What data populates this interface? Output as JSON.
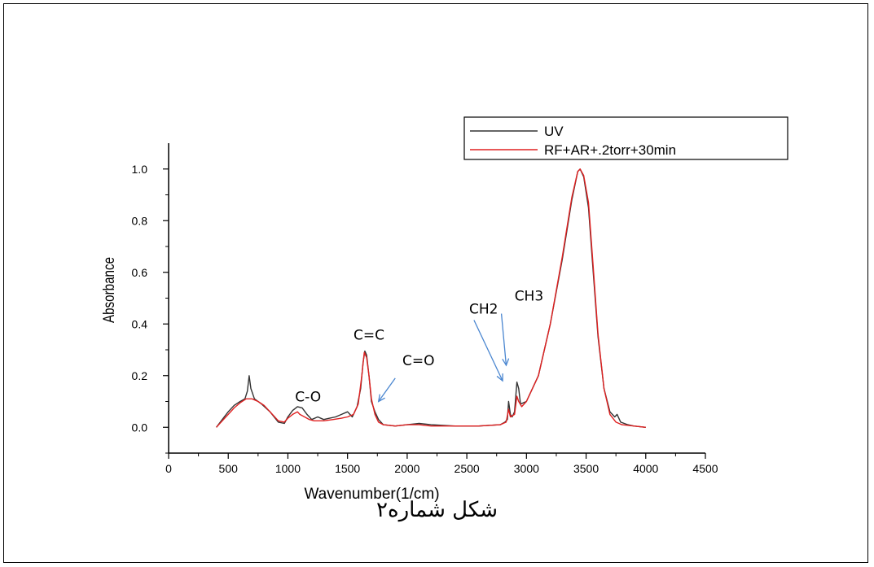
{
  "caption": "شکل شماره۲",
  "chart_data": {
    "type": "line",
    "xlabel": "Wavenumber(1/cm)",
    "ylabel": "Absorbance",
    "xlim": [
      0,
      4500
    ],
    "ylim": [
      -0.1,
      1.1
    ],
    "x_ticks": [
      "0",
      "500",
      "1000",
      "1500",
      "2000",
      "2500",
      "3000",
      "3500",
      "4000",
      "4500"
    ],
    "y_ticks": [
      "0.0",
      "0.2",
      "0.4",
      "0.6",
      "0.8",
      "1.0"
    ],
    "legend_position": "top-right",
    "series": [
      {
        "name": "UV",
        "color": "#333333",
        "points": [
          [
            400,
            0.0
          ],
          [
            450,
            0.03
          ],
          [
            500,
            0.06
          ],
          [
            550,
            0.085
          ],
          [
            600,
            0.1
          ],
          [
            640,
            0.11
          ],
          [
            660,
            0.14
          ],
          [
            675,
            0.2
          ],
          [
            690,
            0.15
          ],
          [
            720,
            0.11
          ],
          [
            780,
            0.09
          ],
          [
            850,
            0.06
          ],
          [
            920,
            0.02
          ],
          [
            970,
            0.015
          ],
          [
            1000,
            0.04
          ],
          [
            1040,
            0.065
          ],
          [
            1080,
            0.08
          ],
          [
            1120,
            0.075
          ],
          [
            1160,
            0.05
          ],
          [
            1200,
            0.03
          ],
          [
            1250,
            0.04
          ],
          [
            1300,
            0.03
          ],
          [
            1350,
            0.035
          ],
          [
            1400,
            0.04
          ],
          [
            1450,
            0.05
          ],
          [
            1500,
            0.06
          ],
          [
            1540,
            0.04
          ],
          [
            1580,
            0.08
          ],
          [
            1610,
            0.15
          ],
          [
            1630,
            0.25
          ],
          [
            1645,
            0.295
          ],
          [
            1660,
            0.28
          ],
          [
            1680,
            0.2
          ],
          [
            1700,
            0.1
          ],
          [
            1730,
            0.06
          ],
          [
            1760,
            0.03
          ],
          [
            1800,
            0.01
          ],
          [
            1900,
            0.005
          ],
          [
            2000,
            0.01
          ],
          [
            2100,
            0.015
          ],
          [
            2200,
            0.01
          ],
          [
            2400,
            0.005
          ],
          [
            2600,
            0.005
          ],
          [
            2780,
            0.01
          ],
          [
            2820,
            0.02
          ],
          [
            2840,
            0.03
          ],
          [
            2850,
            0.1
          ],
          [
            2865,
            0.05
          ],
          [
            2880,
            0.04
          ],
          [
            2900,
            0.06
          ],
          [
            2920,
            0.175
          ],
          [
            2935,
            0.15
          ],
          [
            2950,
            0.09
          ],
          [
            3000,
            0.1
          ],
          [
            3100,
            0.2
          ],
          [
            3200,
            0.4
          ],
          [
            3300,
            0.65
          ],
          [
            3380,
            0.88
          ],
          [
            3430,
            0.99
          ],
          [
            3450,
            1.0
          ],
          [
            3480,
            0.97
          ],
          [
            3520,
            0.85
          ],
          [
            3560,
            0.6
          ],
          [
            3600,
            0.35
          ],
          [
            3650,
            0.15
          ],
          [
            3700,
            0.06
          ],
          [
            3740,
            0.04
          ],
          [
            3760,
            0.05
          ],
          [
            3790,
            0.02
          ],
          [
            3850,
            0.01
          ],
          [
            3900,
            0.005
          ],
          [
            4000,
            0.0
          ]
        ]
      },
      {
        "name": "RF+AR+.2torr+30min",
        "color": "#e02020",
        "points": [
          [
            400,
            0.0
          ],
          [
            450,
            0.025
          ],
          [
            500,
            0.05
          ],
          [
            550,
            0.075
          ],
          [
            600,
            0.095
          ],
          [
            650,
            0.11
          ],
          [
            700,
            0.11
          ],
          [
            750,
            0.1
          ],
          [
            800,
            0.085
          ],
          [
            850,
            0.06
          ],
          [
            920,
            0.025
          ],
          [
            970,
            0.02
          ],
          [
            1000,
            0.035
          ],
          [
            1040,
            0.05
          ],
          [
            1080,
            0.06
          ],
          [
            1100,
            0.05
          ],
          [
            1140,
            0.04
          ],
          [
            1180,
            0.03
          ],
          [
            1220,
            0.025
          ],
          [
            1300,
            0.025
          ],
          [
            1380,
            0.03
          ],
          [
            1450,
            0.035
          ],
          [
            1500,
            0.04
          ],
          [
            1550,
            0.05
          ],
          [
            1590,
            0.09
          ],
          [
            1620,
            0.2
          ],
          [
            1640,
            0.29
          ],
          [
            1660,
            0.27
          ],
          [
            1680,
            0.2
          ],
          [
            1700,
            0.11
          ],
          [
            1730,
            0.05
          ],
          [
            1760,
            0.02
          ],
          [
            1800,
            0.01
          ],
          [
            1900,
            0.005
          ],
          [
            2000,
            0.01
          ],
          [
            2100,
            0.01
          ],
          [
            2200,
            0.005
          ],
          [
            2400,
            0.005
          ],
          [
            2600,
            0.005
          ],
          [
            2780,
            0.01
          ],
          [
            2830,
            0.02
          ],
          [
            2850,
            0.07
          ],
          [
            2865,
            0.04
          ],
          [
            2900,
            0.05
          ],
          [
            2920,
            0.12
          ],
          [
            2935,
            0.1
          ],
          [
            2960,
            0.08
          ],
          [
            3000,
            0.1
          ],
          [
            3100,
            0.2
          ],
          [
            3200,
            0.4
          ],
          [
            3300,
            0.66
          ],
          [
            3380,
            0.89
          ],
          [
            3430,
            0.99
          ],
          [
            3450,
            1.0
          ],
          [
            3480,
            0.975
          ],
          [
            3520,
            0.87
          ],
          [
            3560,
            0.62
          ],
          [
            3600,
            0.36
          ],
          [
            3650,
            0.15
          ],
          [
            3700,
            0.05
          ],
          [
            3750,
            0.02
          ],
          [
            3800,
            0.01
          ],
          [
            3900,
            0.005
          ],
          [
            4000,
            0.0
          ]
        ]
      }
    ],
    "annotations": [
      {
        "text": "C-O",
        "x": 1060,
        "y": 0.1
      },
      {
        "text": "C=C",
        "x": 1550,
        "y": 0.34
      },
      {
        "text": "C=O",
        "x": 1960,
        "y": 0.24
      },
      {
        "text": "CH2",
        "x": 2520,
        "y": 0.44
      },
      {
        "text": "CH3",
        "x": 2900,
        "y": 0.49
      }
    ],
    "arrows": [
      {
        "from": [
          1900,
          0.19
        ],
        "to": [
          1760,
          0.1
        ]
      },
      {
        "from": [
          2560,
          0.415
        ],
        "to": [
          2800,
          0.18
        ]
      },
      {
        "from": [
          2790,
          0.44
        ],
        "to": [
          2830,
          0.24
        ]
      }
    ]
  }
}
